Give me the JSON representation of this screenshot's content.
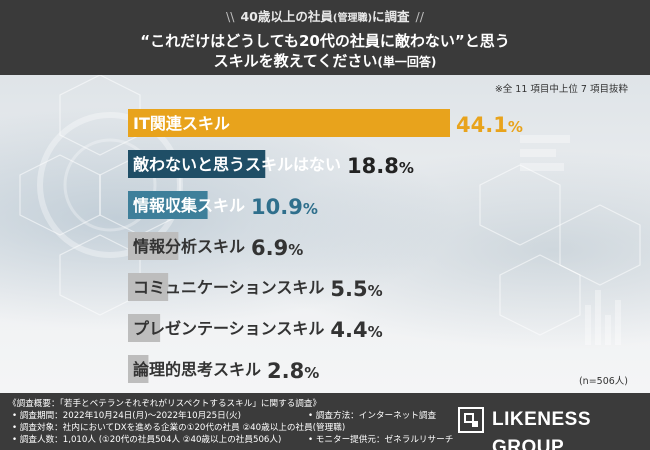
{
  "header": {
    "eyebrow_pre": "40歳以上の社員",
    "eyebrow_small": "(管理職)",
    "eyebrow_post": "に調査",
    "question_line1": "“これだけはどうしても20代の社員に敵わない”と思う",
    "question_line2": "スキルを教えてください",
    "question_note": "(単一回答)"
  },
  "notes": {
    "top_note": "※全 11 項目中上位 7 項目抜粋",
    "sample_size": "(n=506人)"
  },
  "chart_data": {
    "type": "bar",
    "orientation": "horizontal",
    "unit": "%",
    "xlim": [
      0,
      44.1
    ],
    "categories": [
      "IT関連スキル",
      "敵わないと思うスキルはない",
      "情報収集スキル",
      "情報分析スキル",
      "コミュニケーションスキル",
      "プレゼンテーションスキル",
      "論理的思考スキル"
    ],
    "values": [
      44.1,
      18.8,
      10.9,
      6.9,
      5.5,
      4.4,
      2.8
    ],
    "value_labels": [
      "44.1",
      "18.8",
      "10.9",
      "6.9",
      "5.5",
      "4.4",
      "2.8"
    ],
    "colors": [
      "#e8a31c",
      "#1f4e66",
      "#3e7f9a",
      "#bdbdbd",
      "#bdbdbd",
      "#bdbdbd",
      "#bdbdbd"
    ],
    "value_colors": [
      "#e8a31c",
      "#222222",
      "#2f6f8c",
      "#333333",
      "#333333",
      "#333333",
      "#333333"
    ],
    "label_colors": [
      "#ffffff",
      "#ffffff",
      "#ffffff",
      "#333333",
      "#333333",
      "#333333",
      "#333333"
    ],
    "grid": false
  },
  "footer": {
    "survey_title": "《調査概要：「若手とベテランそれぞれがリスペクトするスキル」に関する調査》",
    "period": "• 調査期間：2022年10月24日(月)～2022年10月25日(火)",
    "target": "• 調査対象：社内においてDXを進める企業の①20代の社員 ②40歳以上の社員(管理職)",
    "count": "• 調査人数：1,010人 (①20代の社員504人 ②40歳以上の社員506人)",
    "method": "• 調査方法：インターネット調査",
    "provider": "• モニター提供元：ゼネラルリサーチ",
    "logo_text": "LIKENESS GROUP"
  }
}
